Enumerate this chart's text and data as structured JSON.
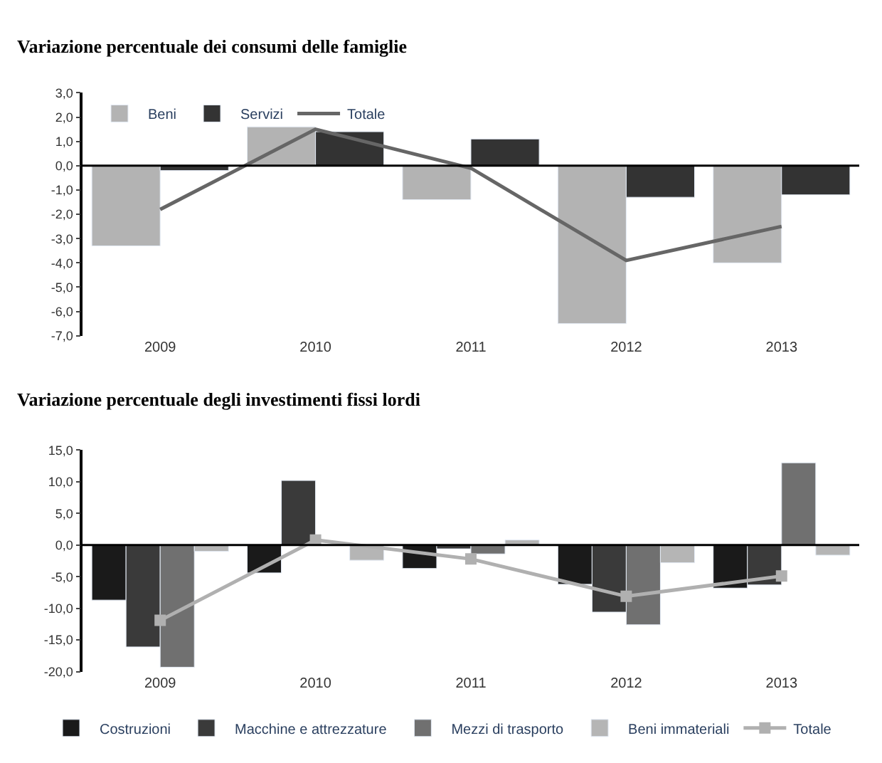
{
  "chart_data": [
    {
      "type": "bar",
      "title": "Variazione percentuale dei consumi delle famiglie",
      "categories": [
        "2009",
        "2010",
        "2011",
        "2012",
        "2013"
      ],
      "series": [
        {
          "name": "Beni",
          "color": "#b3b3b3",
          "values": [
            -3.3,
            1.6,
            -1.4,
            -6.5,
            -4.0
          ]
        },
        {
          "name": "Servizi",
          "color": "#333333",
          "values": [
            -0.2,
            1.4,
            1.1,
            -1.3,
            -1.2
          ]
        },
        {
          "name": "Totale",
          "type": "line",
          "color": "#666666",
          "marker": "none",
          "values": [
            -1.8,
            1.5,
            -0.1,
            -3.9,
            -2.5
          ]
        }
      ],
      "ylim": [
        -7,
        3
      ],
      "yticks": [
        {
          "value": -7,
          "label": "-7,0"
        },
        {
          "value": -6,
          "label": "-6,0"
        },
        {
          "value": -5,
          "label": "-5,0"
        },
        {
          "value": -4,
          "label": "-4,0"
        },
        {
          "value": -3,
          "label": "-3,0"
        },
        {
          "value": -2,
          "label": "-2,0"
        },
        {
          "value": -1,
          "label": "-1,0"
        },
        {
          "value": 0,
          "label": "0,0"
        },
        {
          "value": 1,
          "label": "1,0"
        },
        {
          "value": 2,
          "label": "2,0"
        },
        {
          "value": 3,
          "label": "3,0"
        }
      ],
      "legend": "top left"
    },
    {
      "type": "bar",
      "title": "Variazione percentuale degli investimenti fissi lordi",
      "categories": [
        "2009",
        "2010",
        "2011",
        "2012",
        "2013"
      ],
      "series": [
        {
          "name": "Costruzioni",
          "color": "#1a1a1a",
          "values": [
            -8.7,
            -4.4,
            -3.7,
            -6.2,
            -6.8
          ]
        },
        {
          "name": "Macchine e attrezzature",
          "color": "#3a3a3a",
          "values": [
            -16.1,
            10.2,
            -0.6,
            -10.6,
            -6.3
          ]
        },
        {
          "name": "Mezzi di trasporto",
          "color": "#707070",
          "values": [
            -19.3,
            null,
            -1.4,
            -12.6,
            13.0
          ]
        },
        {
          "name": "Beni immateriali",
          "color": "#b5b5b5",
          "values": [
            -1.0,
            -2.4,
            0.8,
            -2.8,
            -1.6
          ]
        },
        {
          "name": "Totale",
          "type": "line",
          "color": "#b0b0b0",
          "marker": "square",
          "values": [
            -11.9,
            0.8,
            -2.2,
            -8.1,
            -4.9
          ]
        }
      ],
      "ylim": [
        -20,
        15
      ],
      "yticks": [
        {
          "value": -20,
          "label": "-20,0"
        },
        {
          "value": -15,
          "label": "-15,0"
        },
        {
          "value": -10,
          "label": "-10,0"
        },
        {
          "value": -5,
          "label": "-5,0"
        },
        {
          "value": 0,
          "label": "0,0"
        },
        {
          "value": 5,
          "label": "5,0"
        },
        {
          "value": 10,
          "label": "10,0"
        },
        {
          "value": 15,
          "label": "15,0"
        }
      ],
      "legend": "bottom"
    }
  ]
}
